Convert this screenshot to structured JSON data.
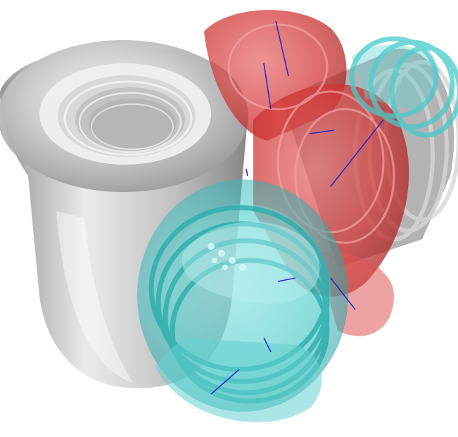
{
  "scene": {
    "subject": "3d-render-transparent-pipe-fitting",
    "colors": {
      "background": "#ffffff",
      "gray_body": "#c9c9c9",
      "gray_dark": "#8e8e8e",
      "gray_light": "#f2f2f2",
      "red_part": "#d83a3a",
      "red_dark": "#a81818",
      "cyan_part": "#3fc7c7",
      "cyan_dark": "#1e9f9f",
      "axis_lines": "#2a2ad0"
    }
  }
}
